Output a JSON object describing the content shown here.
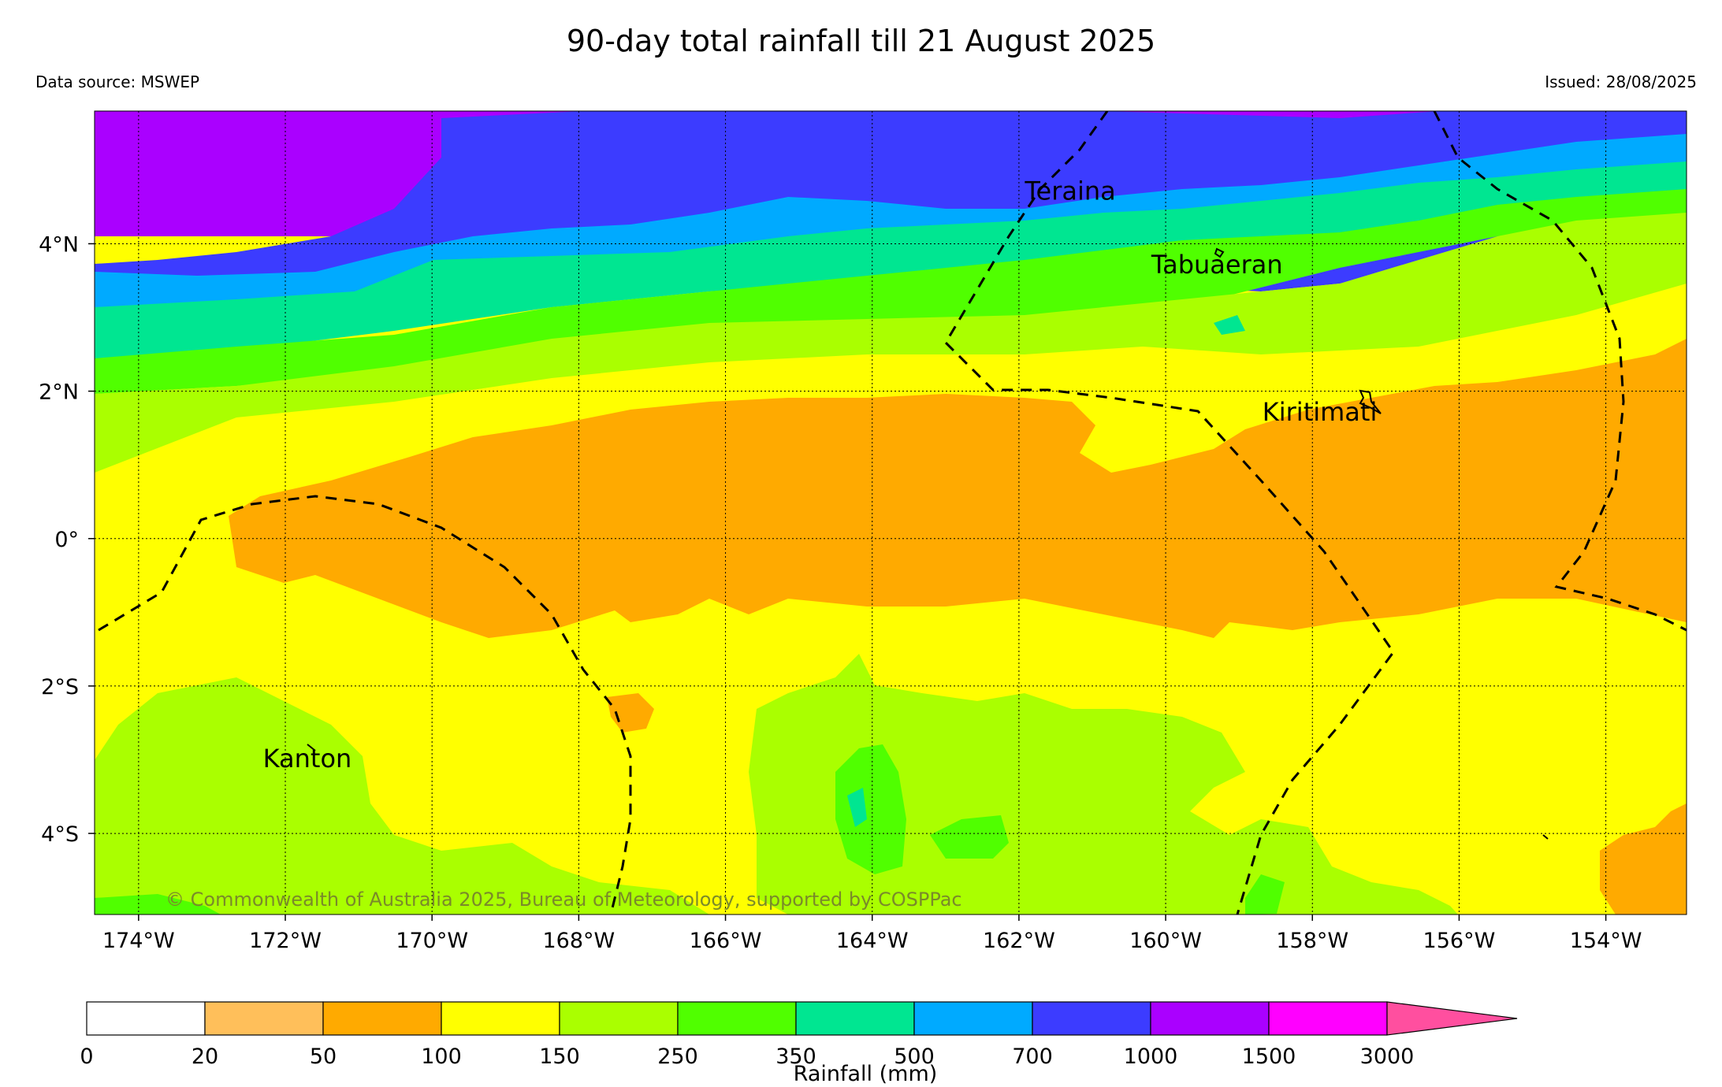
{
  "title": "90-day total rainfall till 21 August 2025",
  "data_source": "Data source: MSWEP",
  "issued": "Issued: 28/08/2025",
  "copyright": "© Commonwealth of Australia 2025, Bureau of Meteorology, supported by COSPPac",
  "map": {
    "lon_range": [
      -174.6,
      -152.9
    ],
    "lat_range": [
      -5.1,
      5.8
    ],
    "lon_ticks": [
      {
        "value": -174,
        "label": "174°W"
      },
      {
        "value": -172,
        "label": "172°W"
      },
      {
        "value": -170,
        "label": "170°W"
      },
      {
        "value": -168,
        "label": "168°W"
      },
      {
        "value": -166,
        "label": "166°W"
      },
      {
        "value": -164,
        "label": "164°W"
      },
      {
        "value": -162,
        "label": "162°W"
      },
      {
        "value": -160,
        "label": "160°W"
      },
      {
        "value": -158,
        "label": "158°W"
      },
      {
        "value": -156,
        "label": "156°W"
      },
      {
        "value": -154,
        "label": "154°W"
      }
    ],
    "lat_ticks": [
      {
        "value": 4,
        "label": "4°N"
      },
      {
        "value": 2,
        "label": "2°N"
      },
      {
        "value": 0,
        "label": "0°"
      },
      {
        "value": -2,
        "label": "2°S"
      },
      {
        "value": -4,
        "label": "4°S"
      }
    ],
    "places": [
      {
        "name": "Teraina",
        "lon": -161.3,
        "lat": 4.6
      },
      {
        "name": "Tabuaeran",
        "lon": -159.3,
        "lat": 3.6
      },
      {
        "name": "Kiritimati",
        "lon": -157.9,
        "lat": 1.6
      },
      {
        "name": "Kanton",
        "lon": -171.7,
        "lat": -3.1
      }
    ]
  },
  "legend": {
    "title": "Rainfall (mm)",
    "bins": [
      {
        "lo": "0",
        "color": "#ffffff"
      },
      {
        "lo": "20",
        "color": "#ffbf5a"
      },
      {
        "lo": "50",
        "color": "#ffaa00"
      },
      {
        "lo": "100",
        "color": "#ffff00"
      },
      {
        "lo": "150",
        "color": "#aaff00"
      },
      {
        "lo": "250",
        "color": "#50ff00"
      },
      {
        "lo": "350",
        "color": "#00e691"
      },
      {
        "lo": "500",
        "color": "#00aaff"
      },
      {
        "lo": "700",
        "color": "#3c3cff"
      },
      {
        "lo": "1000",
        "color": "#aa00ff"
      },
      {
        "lo": "1500",
        "color": "#ff00ff"
      }
    ],
    "last_label": "3000",
    "overflow_color": "#ff4f9f"
  }
}
